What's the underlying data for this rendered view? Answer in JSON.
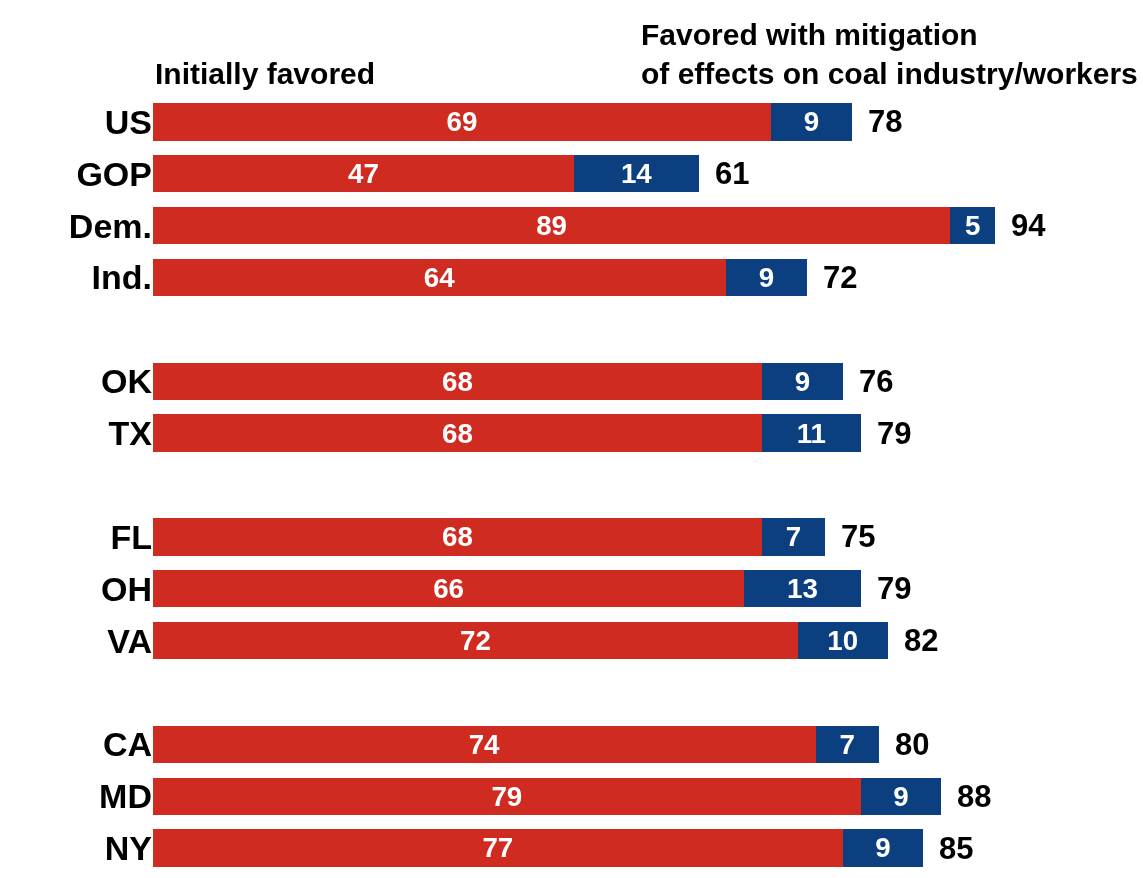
{
  "chart_data": {
    "type": "bar",
    "orientation": "horizontal",
    "stacked": true,
    "data_labels": true,
    "categories": [
      "US",
      "GOP",
      "Dem.",
      "Ind.",
      null,
      "OK",
      "TX",
      null,
      "FL",
      "OH",
      "VA",
      null,
      "CA",
      "MD",
      "NY"
    ],
    "series": [
      {
        "name": "Initially favored",
        "color": "#d02b20",
        "values": [
          69,
          47,
          89,
          64,
          null,
          68,
          68,
          null,
          68,
          66,
          72,
          null,
          74,
          79,
          77
        ]
      },
      {
        "name": "Favored with mitigation of effects on coal industry/workers",
        "color": "#0b3f7f",
        "values": [
          9,
          14,
          5,
          9,
          null,
          9,
          11,
          null,
          7,
          13,
          10,
          null,
          7,
          9,
          9
        ]
      }
    ],
    "totals": [
      "78",
      "61",
      "94",
      "72",
      null,
      "76",
      "79",
      null,
      "75",
      "79",
      "82",
      null,
      "80",
      "88",
      "85"
    ]
  }
}
